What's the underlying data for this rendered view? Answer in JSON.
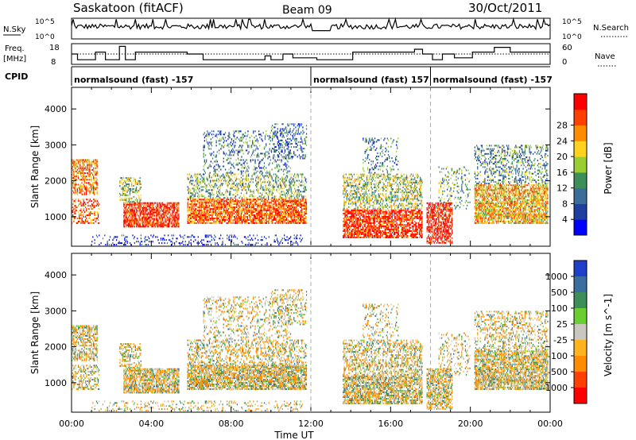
{
  "header": {
    "station": "Saskatoon (fitACF)",
    "beam": "Beam 09",
    "date": "30/Oct/2011"
  },
  "side_labels": {
    "nsky": "N.Sky",
    "freq_line1": "Freq.",
    "freq_line2": "[MHz]",
    "cpid": "CPID",
    "nsearch": "N.Search",
    "nave": "Nave"
  },
  "noise_axis": {
    "top": "10^5",
    "bottom": "10^0"
  },
  "freq_axis": {
    "top": "18",
    "bottom": "8"
  },
  "nave_axis": {
    "top": "60",
    "bottom": "0"
  },
  "cpid_segments": [
    {
      "label": "normalsound (fast) -157",
      "start_hour": 0
    },
    {
      "label": "normalsound (fast) 157",
      "start_hour": 12
    },
    {
      "label": "normalsound (fast) -157",
      "start_hour": 18
    }
  ],
  "colors": {
    "power_scale": [
      "#0000ff",
      "#1e3fa0",
      "#3a6e9a",
      "#3e8e5a",
      "#9acd32",
      "#ffd21e",
      "#ff8c00",
      "#ff4000",
      "#ff0000"
    ],
    "velocity_scale": [
      "#1e3fc8",
      "#3a6ea0",
      "#3e8e5a",
      "#6acd32",
      "#c8c8c0",
      "#ffb41e",
      "#ff8c00",
      "#ff4000",
      "#ff0000"
    ]
  },
  "chart_data": [
    {
      "type": "heatmap",
      "name": "power",
      "xlabel": "",
      "ylabel": "Slant Range [km]",
      "xlim": [
        0,
        24
      ],
      "ylim": [
        180,
        4600
      ],
      "y_ticks": [
        1000,
        2000,
        3000,
        4000
      ],
      "colorbar_label": "Power [dB]",
      "colorbar_ticks": [
        "4",
        "8",
        "12",
        "16",
        "20",
        "24",
        "28"
      ],
      "colorbar_range": [
        0,
        32
      ]
    },
    {
      "type": "heatmap",
      "name": "velocity",
      "xlabel": "Time UT",
      "ylabel": "Slant Range [km]",
      "xlim": [
        0,
        24
      ],
      "ylim": [
        180,
        4600
      ],
      "x_tick_labels": [
        "00:00",
        "04:00",
        "08:00",
        "12:00",
        "16:00",
        "20:00",
        "00:00"
      ],
      "y_ticks": [
        1000,
        2000,
        3000,
        4000
      ],
      "colorbar_label": "Velocity [m s^-1]",
      "colorbar_ticks": [
        "1000",
        "500",
        "100",
        "25",
        "-25",
        "-100",
        "-500",
        "-1000"
      ]
    }
  ]
}
